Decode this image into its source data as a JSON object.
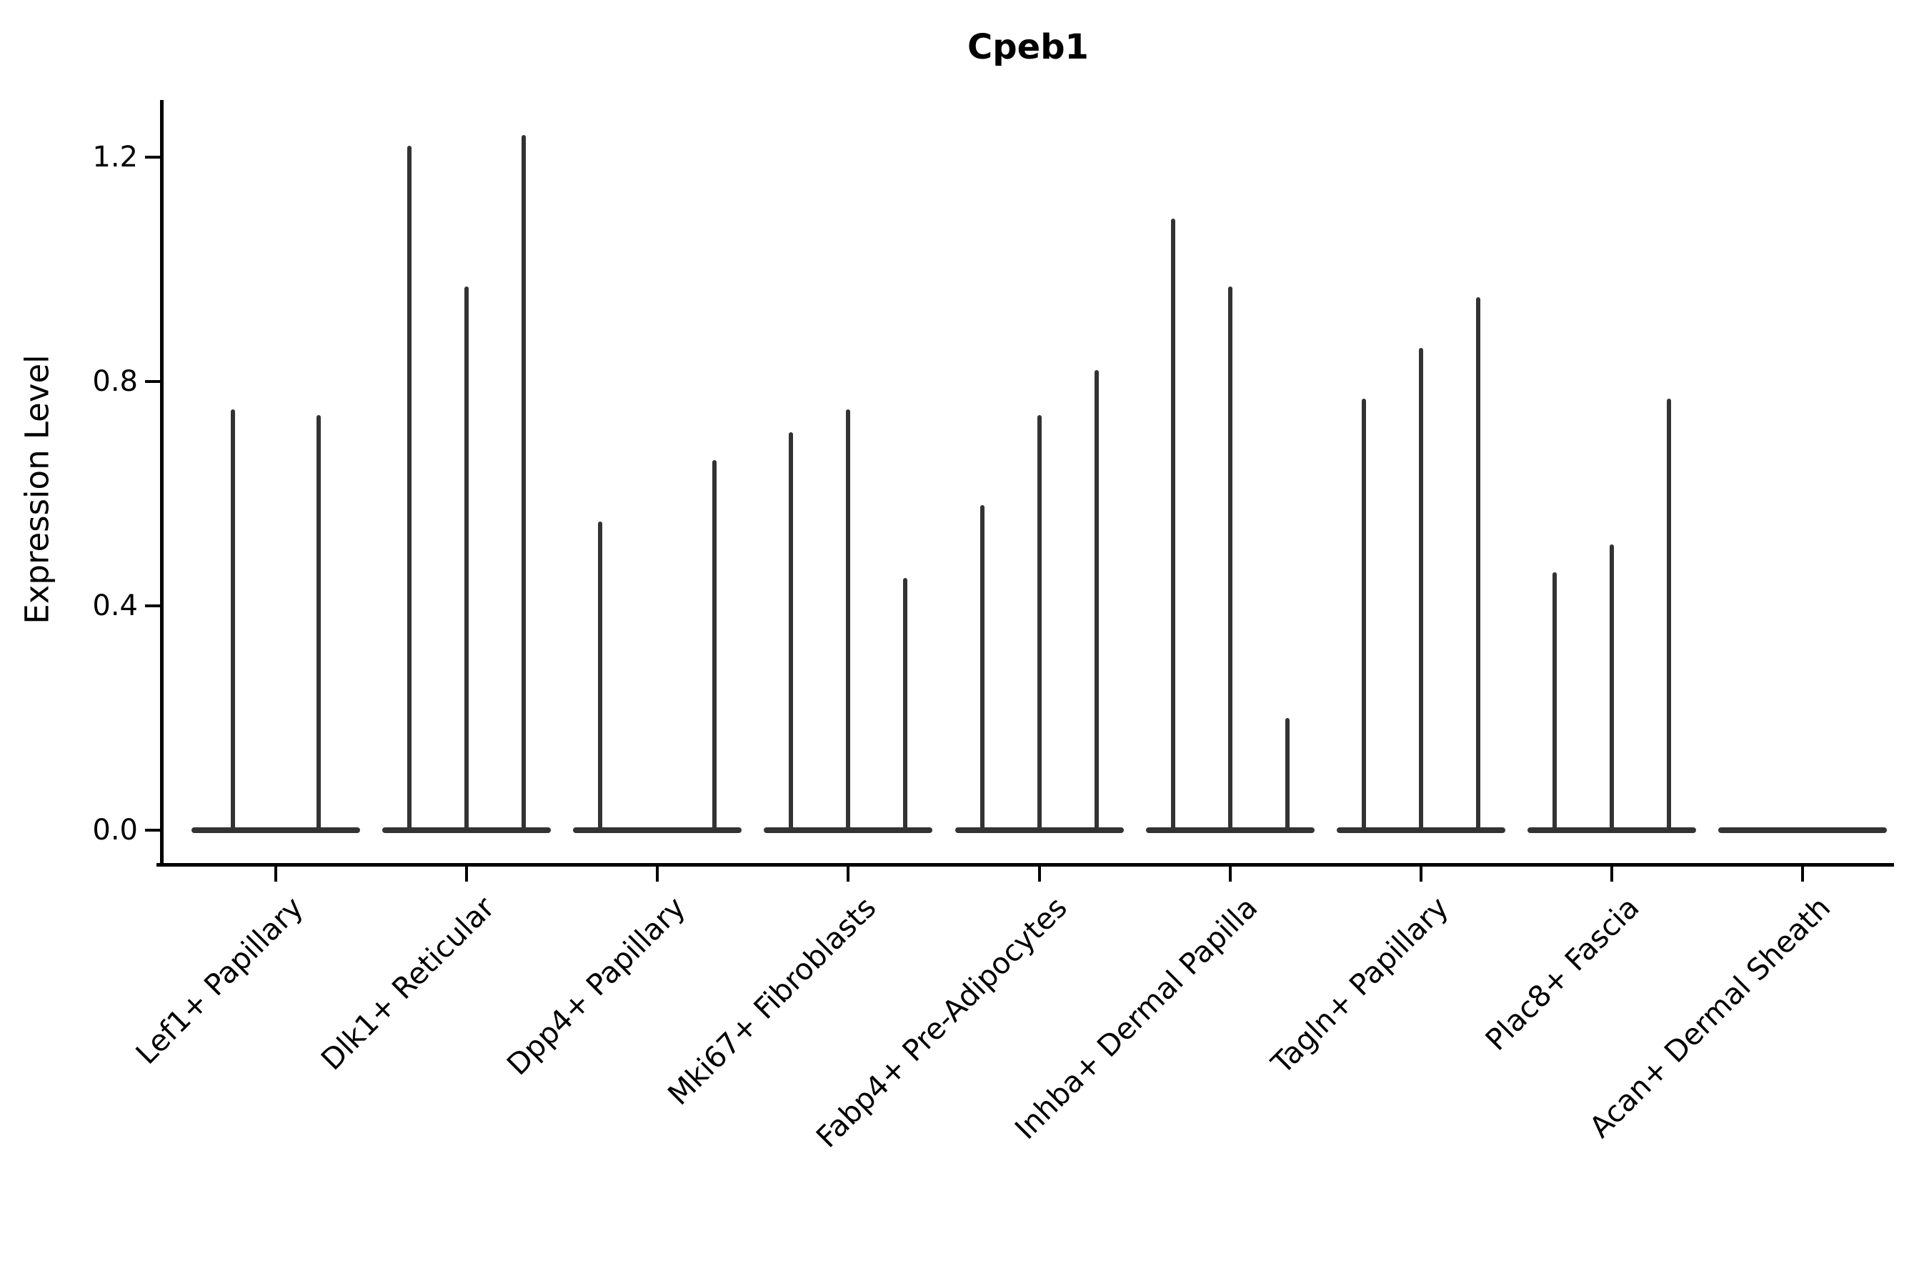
{
  "figure": {
    "title": "Cpeb1",
    "ylabel": "Expression Level",
    "background_color": "#ffffff",
    "axis_color": "#000000",
    "violin_color": "#333333",
    "ytick_labels": [
      "0.0",
      "0.4",
      "0.8",
      "1.2"
    ]
  },
  "chart_data": {
    "type": "violin",
    "title": "Cpeb1",
    "xlabel": "",
    "ylabel": "Expression Level",
    "ylim": [
      -0.06,
      1.3
    ],
    "yticks": [
      0.0,
      0.4,
      0.8,
      1.2
    ],
    "grid": false,
    "legend": "none",
    "description": "Single-cell expression violin plot; each category shows 2-3 narrow split violins collapsed at 0 with thin density spikes whose tops mark the maximum expression level.",
    "categories": [
      "Lef1+ Papillary",
      "Dlk1+ Reticular",
      "Dpp4+ Papillary",
      "Mki67+ Fibroblasts",
      "Fabp4+ Pre-Adipocytes",
      "Inhba+ Dermal Papilla",
      "Tagln+ Papillary",
      "Plac8+ Fascia",
      "Acan+ Dermal Sheath"
    ],
    "series": [
      {
        "category": "Lef1+ Papillary",
        "violin_peaks": [
          0.75,
          0.74
        ]
      },
      {
        "category": "Dlk1+ Reticular",
        "violin_peaks": [
          1.22,
          0.97,
          1.24
        ]
      },
      {
        "category": "Dpp4+ Papillary",
        "violin_peaks": [
          0.55,
          0.0,
          0.66
        ]
      },
      {
        "category": "Mki67+ Fibroblasts",
        "violin_peaks": [
          0.71,
          0.75,
          0.45
        ]
      },
      {
        "category": "Fabp4+ Pre-Adipocytes",
        "violin_peaks": [
          0.58,
          0.74,
          0.82
        ]
      },
      {
        "category": "Inhba+ Dermal Papilla",
        "violin_peaks": [
          1.09,
          0.97,
          0.2
        ]
      },
      {
        "category": "Tagln+ Papillary",
        "violin_peaks": [
          0.77,
          0.86,
          0.95
        ]
      },
      {
        "category": "Plac8+ Fascia",
        "violin_peaks": [
          0.46,
          0.51,
          0.77
        ]
      },
      {
        "category": "Acan+ Dermal Sheath",
        "violin_peaks": [
          0.0,
          0.0,
          0.0
        ]
      }
    ]
  }
}
